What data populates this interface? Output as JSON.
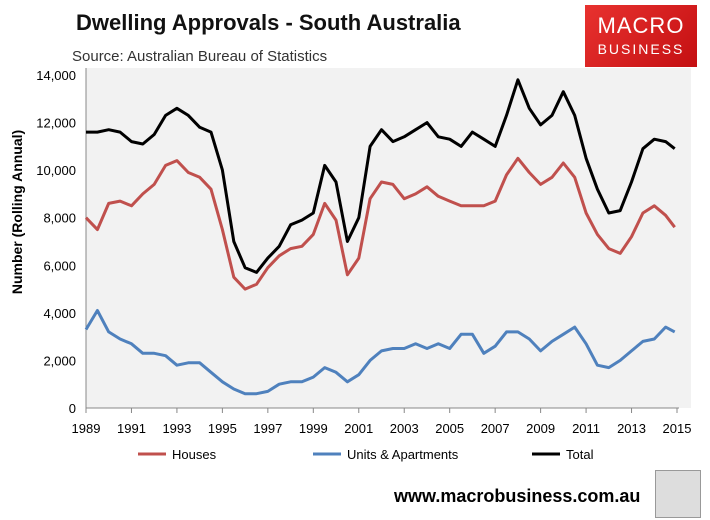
{
  "header": {
    "title": "Dwelling Approvals - South Australia",
    "source": "Source: Australian Bureau of Statistics"
  },
  "logo": {
    "line1": "MACRO",
    "line2": "BUSINESS"
  },
  "footer": {
    "url": "www.macrobusiness.com.au"
  },
  "chart_data": {
    "type": "line",
    "title": "Dwelling Approvals - South Australia",
    "xlabel": "",
    "ylabel": "Number (Rolling Annual)",
    "ylim": [
      0,
      14000
    ],
    "xlim": [
      1989,
      2015
    ],
    "yticks": [
      "0",
      "2,000",
      "4,000",
      "6,000",
      "8,000",
      "10,000",
      "12,000",
      "14,000"
    ],
    "xticks": [
      "1989",
      "1991",
      "1993",
      "1995",
      "1997",
      "1999",
      "2001",
      "2003",
      "2005",
      "2007",
      "2009",
      "2011",
      "2013",
      "2015"
    ],
    "legend_position": "bottom",
    "x": [
      1989,
      1989.5,
      1990,
      1990.5,
      1991,
      1991.5,
      1992,
      1992.5,
      1993,
      1993.5,
      1994,
      1994.5,
      1995,
      1995.5,
      1996,
      1996.5,
      1997,
      1997.5,
      1998,
      1998.5,
      1999,
      1999.5,
      2000,
      2000.5,
      2001,
      2001.5,
      2002,
      2002.5,
      2003,
      2003.5,
      2004,
      2004.5,
      2005,
      2005.5,
      2006,
      2006.5,
      2007,
      2007.5,
      2008,
      2008.5,
      2009,
      2009.5,
      2010,
      2010.5,
      2011,
      2011.5,
      2012,
      2012.5,
      2013,
      2013.5,
      2014,
      2014.5,
      2014.9
    ],
    "series": [
      {
        "name": "Houses",
        "color": "#c0504d",
        "values": [
          8000,
          7500,
          8600,
          8700,
          8500,
          9000,
          9400,
          10200,
          10400,
          9900,
          9700,
          9200,
          7500,
          5500,
          5000,
          5200,
          5900,
          6400,
          6700,
          6800,
          7300,
          8600,
          7900,
          5600,
          6300,
          8800,
          9500,
          9400,
          8800,
          9000,
          9300,
          8900,
          8700,
          8500,
          8500,
          8500,
          8700,
          9800,
          10500,
          9900,
          9400,
          9700,
          10300,
          9700,
          8200,
          7300,
          6700,
          6500,
          7200,
          8200,
          8500,
          8100,
          7600
        ]
      },
      {
        "name": "Units & Apartments",
        "color": "#4f81bd",
        "values": [
          3300,
          4100,
          3200,
          2900,
          2700,
          2300,
          2300,
          2200,
          1800,
          1900,
          1900,
          1500,
          1100,
          800,
          600,
          600,
          700,
          1000,
          1100,
          1100,
          1300,
          1700,
          1500,
          1100,
          1400,
          2000,
          2400,
          2500,
          2500,
          2700,
          2500,
          2700,
          2500,
          3100,
          3100,
          2300,
          2600,
          3200,
          3200,
          2900,
          2400,
          2800,
          3100,
          3400,
          2700,
          1800,
          1700,
          2000,
          2400,
          2800,
          2900,
          3400,
          3200
        ]
      },
      {
        "name": "Total",
        "color": "#000000",
        "values": [
          11600,
          11600,
          11700,
          11600,
          11200,
          11100,
          11500,
          12300,
          12600,
          12300,
          11800,
          11600,
          10000,
          7000,
          5900,
          5700,
          6300,
          6800,
          7700,
          7900,
          8200,
          10200,
          9500,
          7000,
          8000,
          11000,
          11700,
          11200,
          11400,
          11700,
          12000,
          11400,
          11300,
          11000,
          11600,
          11300,
          11000,
          12300,
          13800,
          12600,
          11900,
          12300,
          13300,
          12300,
          10500,
          9200,
          8200,
          8300,
          9500,
          10900,
          11300,
          11200,
          10900
        ]
      }
    ]
  }
}
